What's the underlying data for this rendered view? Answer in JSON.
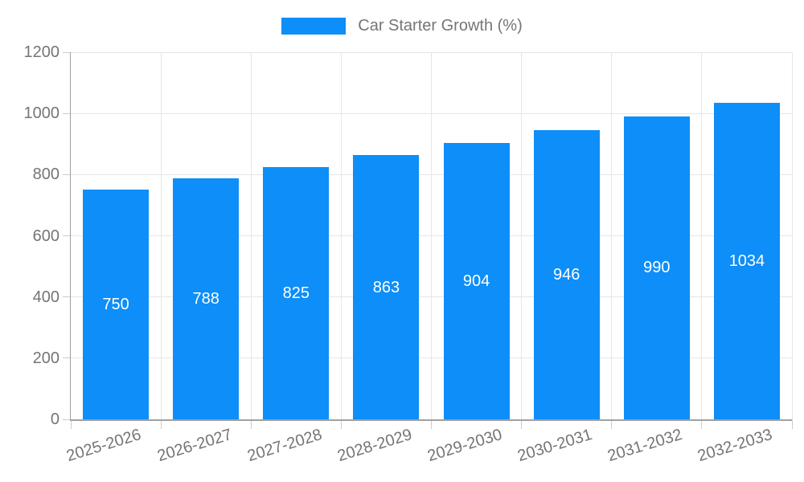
{
  "legend": {
    "label": "Car Starter Growth (%)"
  },
  "colors": {
    "bar": "#0d8ef8",
    "bar_label": "#ffffff",
    "axis_text": "#757575",
    "legend_text": "#757575",
    "gridline": "#e6e6e6",
    "tick": "#cccccc",
    "axis_line": "#a0a0a0"
  },
  "chart_data": {
    "type": "bar",
    "title": "",
    "categories": [
      "2025-2026",
      "2026-2027",
      "2027-2028",
      "2028-2029",
      "2029-2030",
      "2030-2031",
      "2031-2032",
      "2032-2033"
    ],
    "series": [
      {
        "name": "Car Starter Growth (%)",
        "values": [
          750,
          788,
          825,
          863,
          904,
          946,
          990,
          1034
        ]
      }
    ],
    "bar_value_labels": [
      "750",
      "788",
      "825",
      "863",
      "904",
      "946",
      "990",
      "1034"
    ],
    "xlabel": "",
    "ylabel": "",
    "ylim": [
      0,
      1200
    ],
    "yticks": [
      0,
      200,
      400,
      600,
      800,
      1000,
      1200
    ],
    "ytick_labels": [
      "0",
      "200",
      "400",
      "600",
      "800",
      "1000",
      "1200"
    ],
    "grid": true,
    "legend_position": "top",
    "value_labels_inside_bars": true
  }
}
